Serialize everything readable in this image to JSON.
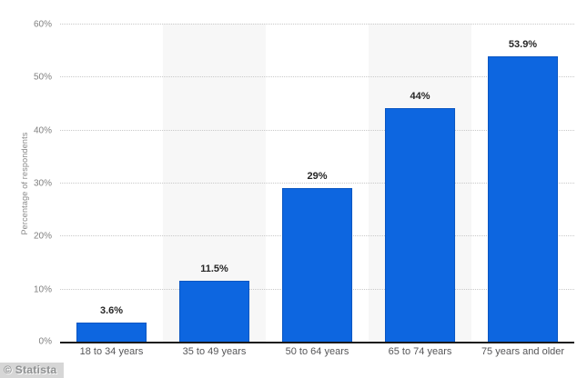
{
  "chart_data": {
    "type": "bar",
    "categories": [
      "18 to 34 years",
      "35 to 49 years",
      "50 to 64 years",
      "65 to 74 years",
      "75 years and older"
    ],
    "values": [
      3.6,
      11.5,
      29,
      44,
      53.9
    ],
    "value_labels": [
      "3.6%",
      "11.5%",
      "29%",
      "44%",
      "53.9%"
    ],
    "title": "",
    "xlabel": "",
    "ylabel": "Percentage of respondents",
    "ylim": [
      0,
      60
    ],
    "yticks": [
      0,
      10,
      20,
      30,
      40,
      50,
      60
    ],
    "ytick_labels": [
      "0%",
      "10%",
      "20%",
      "30%",
      "40%",
      "50%",
      "60%"
    ],
    "grid": "horizontal-dotted",
    "legend": "none",
    "bar_color": "#0d66e0",
    "band_alt_color": "#f7f7f7"
  },
  "watermark": {
    "label": "© Statista"
  }
}
